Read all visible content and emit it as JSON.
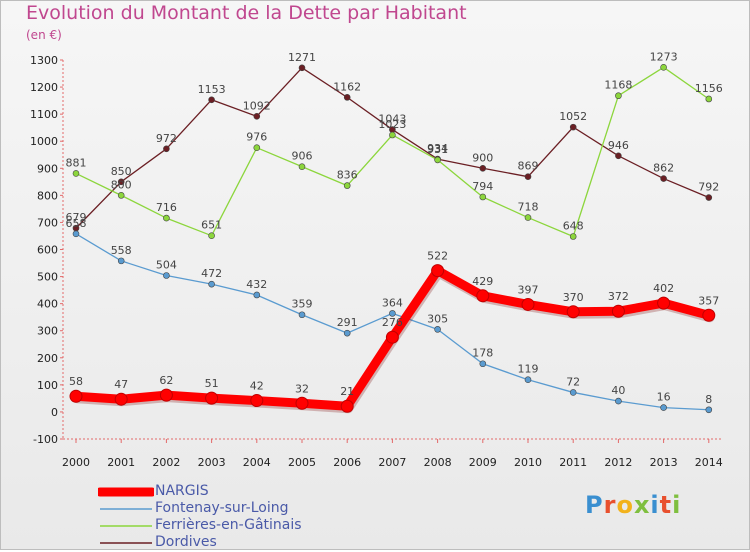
{
  "header": {
    "title": "Evolution du Montant de la Dette par Habitant",
    "unit": "(en €)"
  },
  "logo": {
    "text": "Proxiti",
    "letter_colors": [
      "#3a8fd0",
      "#e8502e",
      "#f2b21c",
      "#7fbf3f",
      "#3a8fd0",
      "#e8502e",
      "#7fbf3f"
    ]
  },
  "chart_data": {
    "type": "line",
    "categories": [
      "2000",
      "2001",
      "2002",
      "2003",
      "2004",
      "2005",
      "2006",
      "2007",
      "2008",
      "2009",
      "2010",
      "2011",
      "2012",
      "2013",
      "2014"
    ],
    "y_ticks": [
      -100,
      0,
      100,
      200,
      300,
      400,
      500,
      600,
      700,
      800,
      900,
      1000,
      1100,
      1200,
      1300
    ],
    "ylim": [
      -100,
      1300
    ],
    "grid": false,
    "legend_position": "bottom-left",
    "series": [
      {
        "name": "Dordives",
        "color": "#6b1f24",
        "values": [
          679,
          850,
          972,
          1153,
          1092,
          1271,
          1162,
          1043,
          934,
          900,
          869,
          1052,
          946,
          862,
          792
        ],
        "labels": [
          "679",
          "850",
          "972",
          "1153",
          "1092",
          "1271",
          "1162",
          "1043",
          "934",
          "900",
          "869",
          "1052",
          "946",
          "862",
          "792"
        ]
      },
      {
        "name": "Ferrières-en-Gâtinais",
        "color": "#8cd63c",
        "values": [
          881,
          800,
          716,
          651,
          976,
          906,
          836,
          1023,
          931,
          794,
          718,
          648,
          1168,
          1273,
          1156
        ],
        "labels": [
          "881",
          "800",
          "716",
          "651",
          "976",
          "906",
          "836",
          "1023",
          "931",
          "794",
          "718",
          "648",
          "1168",
          "1273",
          "1156"
        ]
      },
      {
        "name": "Fontenay-sur-Loing",
        "color": "#5a9bd0",
        "values": [
          658,
          558,
          504,
          472,
          432,
          359,
          291,
          364,
          305,
          178,
          119,
          72,
          40,
          16,
          8
        ],
        "labels": [
          "658",
          "558",
          "504",
          "472",
          "432",
          "359",
          "291",
          "364",
          "305",
          "178",
          "119",
          "72",
          "40",
          "16",
          "8"
        ]
      },
      {
        "name": "NARGIS",
        "color": "#ff0000",
        "values": [
          58,
          47,
          62,
          51,
          42,
          32,
          21,
          276,
          522,
          429,
          397,
          370,
          372,
          402,
          357
        ],
        "labels": [
          "58",
          "47",
          "62",
          "51",
          "42",
          "32",
          "21",
          "276",
          "522",
          "429",
          "397",
          "370",
          "372",
          "402",
          "357"
        ]
      }
    ],
    "legend": [
      "NARGIS",
      "Fontenay-sur-Loing",
      "Ferrières-en-Gâtinais",
      "Dordives"
    ]
  }
}
